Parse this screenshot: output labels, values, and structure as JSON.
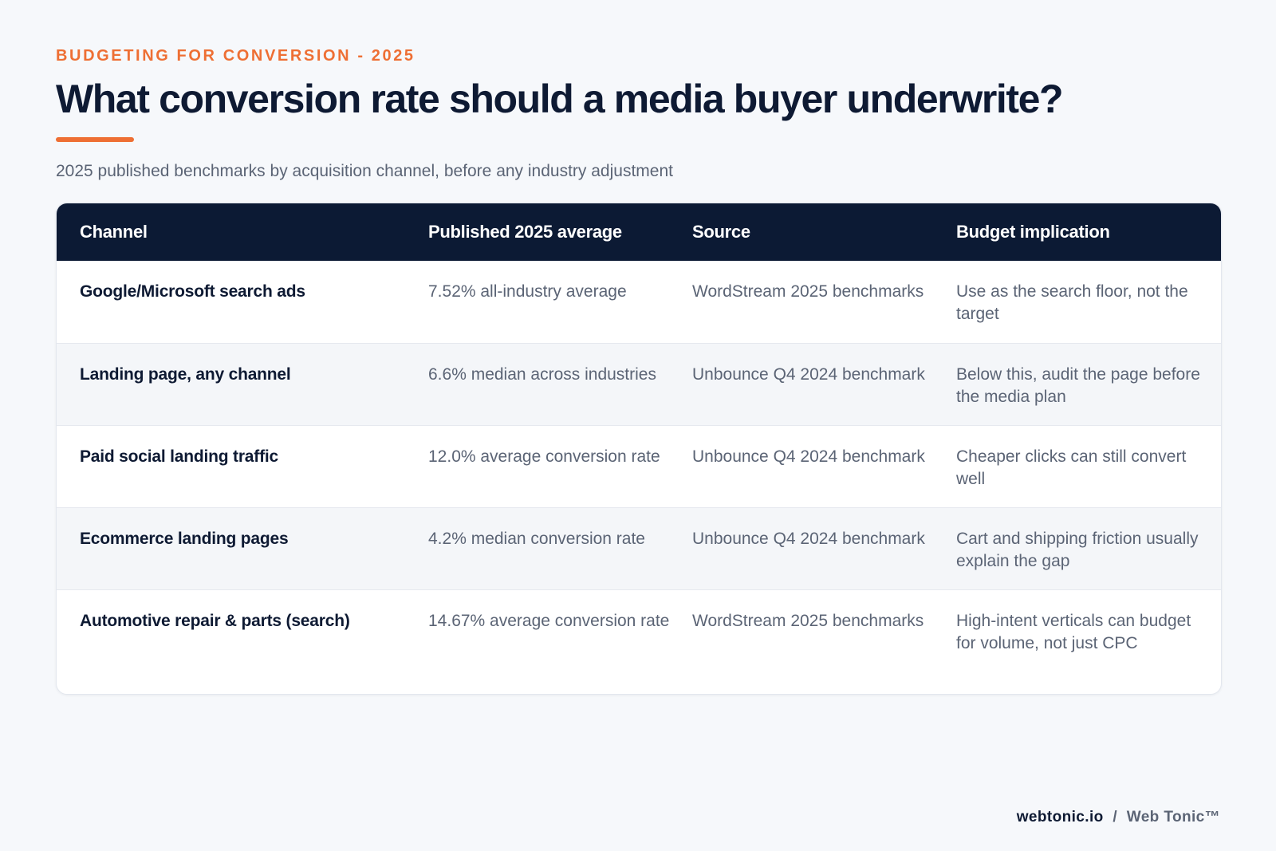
{
  "header": {
    "eyebrow": "BUDGETING FOR CONVERSION - 2025",
    "title": "What conversion rate should a media buyer underwrite?",
    "subtitle": "2025 published benchmarks by acquisition channel, before any industry adjustment"
  },
  "table": {
    "columns": [
      "Channel",
      "Published 2025 average",
      "Source",
      "Budget implication"
    ],
    "rows": [
      [
        "Google/Microsoft search ads",
        "7.52% all-industry average",
        "WordStream 2025 benchmarks",
        "Use as the search floor, not the target"
      ],
      [
        "Landing page, any channel",
        "6.6% median across industries",
        "Unbounce Q4 2024 benchmark",
        "Below this, audit the page before the media plan"
      ],
      [
        "Paid social landing traffic",
        "12.0% average conversion rate",
        "Unbounce Q4 2024 benchmark",
        "Cheaper clicks can still convert well"
      ],
      [
        "Ecommerce landing pages",
        "4.2% median conversion rate",
        "Unbounce Q4 2024 benchmark",
        "Cart and shipping friction usually explain the gap"
      ],
      [
        "Automotive repair & parts (search)",
        "14.67% average conversion rate",
        "WordStream 2025 benchmarks",
        "High-intent verticals can budget for volume, not just CPC"
      ]
    ]
  },
  "footer": {
    "domain": "webtonic.io",
    "separator": "/",
    "brand": "Web Tonic™"
  },
  "colors": {
    "accent": "#ee6f34",
    "header_bg": "#0c1a34",
    "page_bg": "#f6f8fb"
  }
}
